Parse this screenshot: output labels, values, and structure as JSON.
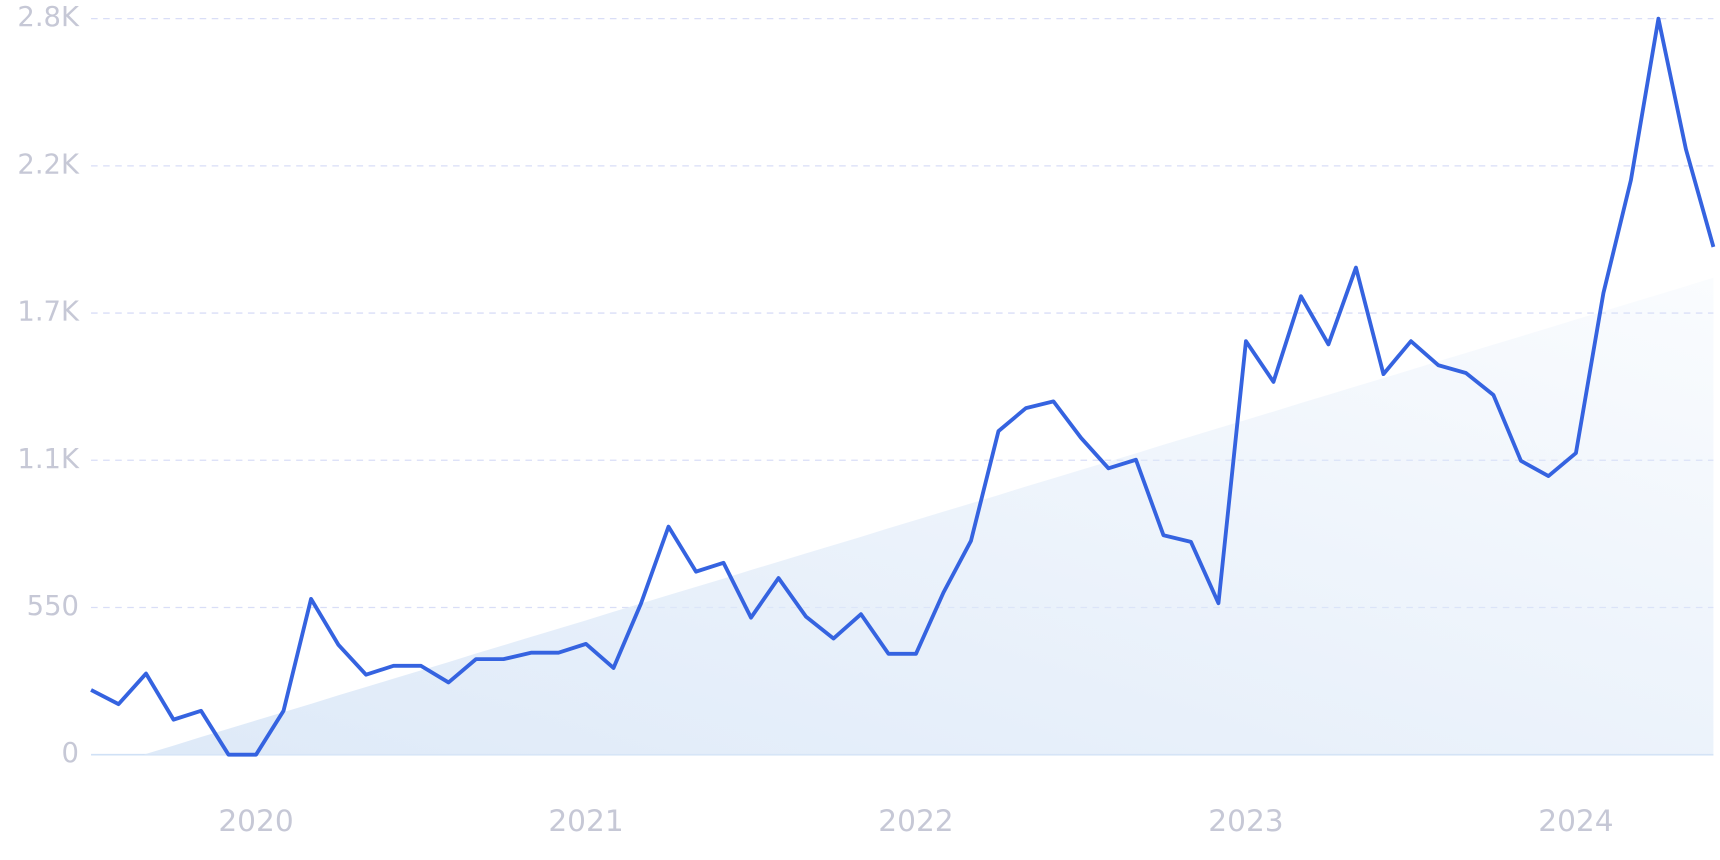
{
  "chart_data": {
    "type": "line",
    "categories": [
      null,
      null,
      null,
      null,
      null,
      null,
      "2020",
      null,
      null,
      null,
      null,
      null,
      null,
      null,
      null,
      null,
      null,
      null,
      "2021",
      null,
      null,
      null,
      null,
      null,
      null,
      null,
      null,
      null,
      null,
      null,
      "2022",
      null,
      null,
      null,
      null,
      null,
      null,
      null,
      null,
      null,
      null,
      null,
      "2023",
      null,
      null,
      null,
      null,
      null,
      null,
      null,
      null,
      null,
      null,
      null,
      "2024",
      null,
      null,
      null,
      null,
      null
    ],
    "series": [
      {
        "color": "#3563e0",
        "values": [
          242,
          189,
          303,
          131,
          164,
          0,
          0,
          164,
          582,
          410,
          299,
          332,
          332,
          270,
          357,
          357,
          381,
          381,
          414,
          324,
          565,
          852,
          684,
          717,
          512,
          660,
          516,
          434,
          525,
          377,
          377,
          606,
          799,
          1209,
          1295,
          1320,
          1184,
          1070,
          1102,
          820,
          795,
          566,
          1545,
          1393,
          1713,
          1533,
          1820,
          1422,
          1545,
          1455,
          1426,
          1344,
          1098,
          1041,
          1127,
          1725,
          2147,
          2750,
          2262,
          1897
        ]
      },
      {
        "type": "area",
        "color": "#dde9f8",
        "values": [
          -59,
          -28,
          3,
          34,
          66,
          97,
          128,
          159,
          190,
          222,
          253,
          284,
          315,
          346,
          378,
          409,
          440,
          471,
          502,
          534,
          565,
          596,
          627,
          658,
          690,
          721,
          752,
          783,
          814,
          846,
          877,
          908,
          939,
          970,
          1002,
          1033,
          1064,
          1095,
          1126,
          1158,
          1189,
          1220,
          1251,
          1282,
          1314,
          1345,
          1376,
          1407,
          1438,
          1470,
          1501,
          1532,
          1563,
          1594,
          1626,
          1657,
          1688,
          1719,
          1750,
          1782
        ]
      }
    ],
    "ylim": [
      0,
      2750
    ],
    "yticks": [
      0,
      550,
      {
        "value": 1100,
        "label": "1.1K"
      },
      {
        "value": 1650,
        "label": "1.7K"
      },
      {
        "value": 2200,
        "label": "2.2K"
      },
      {
        "value": 2750,
        "label": "2.8K"
      }
    ],
    "grid": true
  }
}
